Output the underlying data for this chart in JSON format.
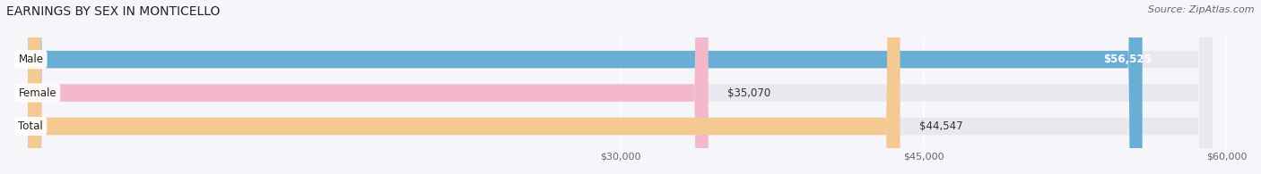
{
  "title": "EARNINGS BY SEX IN MONTICELLO",
  "source": "Source: ZipAtlas.com",
  "categories": [
    "Male",
    "Female",
    "Total"
  ],
  "values": [
    56525,
    35070,
    44547
  ],
  "bar_colors": [
    "#6aaed6",
    "#f4b8cb",
    "#f5c992"
  ],
  "value_labels": [
    "$56,525",
    "$35,070",
    "$44,547"
  ],
  "label_inside": [
    true,
    false,
    false
  ],
  "xmin": 0,
  "xmax": 60000,
  "xticks": [
    30000,
    45000,
    60000
  ],
  "xtick_labels": [
    "$30,000",
    "$45,000",
    "$60,000"
  ],
  "background_color": "#f5f5fa",
  "bar_bg_color": "#e8e8ee",
  "title_fontsize": 10,
  "source_fontsize": 8,
  "bar_height": 0.52,
  "figsize": [
    14.06,
    1.95
  ],
  "dpi": 100
}
